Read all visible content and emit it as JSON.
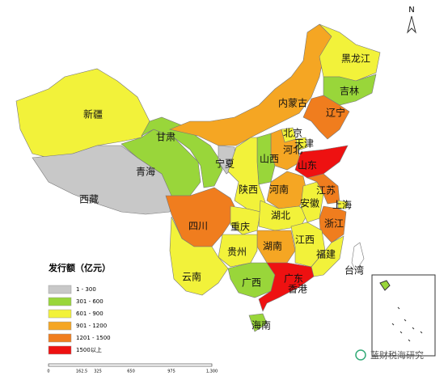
{
  "title": "发行额（亿元）",
  "legend": {
    "items": [
      {
        "label": "1 - 300",
        "color": "#c8c8c8"
      },
      {
        "label": "301 - 600",
        "color": "#99d63a"
      },
      {
        "label": "601 - 900",
        "color": "#f2f23a"
      },
      {
        "label": "901 - 1200",
        "color": "#f5a623"
      },
      {
        "label": "1201 - 1500",
        "color": "#f07d1e"
      },
      {
        "label": "1500以上",
        "color": "#ee1111"
      }
    ]
  },
  "regions": [
    {
      "name": "新疆",
      "legend": 2
    },
    {
      "name": "西藏",
      "legend": 0
    },
    {
      "name": "青海",
      "legend": 1
    },
    {
      "name": "甘肃",
      "legend": 1
    },
    {
      "name": "宁夏",
      "legend": 0
    },
    {
      "name": "内蒙古",
      "legend": 3
    },
    {
      "name": "黑龙江",
      "legend": 2
    },
    {
      "name": "吉林",
      "legend": 1
    },
    {
      "name": "辽宁",
      "legend": 4
    },
    {
      "name": "北京",
      "legend": 2
    },
    {
      "name": "天津",
      "legend": 2
    },
    {
      "name": "河北",
      "legend": 3
    },
    {
      "name": "山西",
      "legend": 1
    },
    {
      "name": "山东",
      "legend": 5
    },
    {
      "name": "河南",
      "legend": 3
    },
    {
      "name": "陕西",
      "legend": 2
    },
    {
      "name": "四川",
      "legend": 4
    },
    {
      "name": "重庆",
      "legend": 2
    },
    {
      "name": "湖北",
      "legend": 2
    },
    {
      "name": "安徽",
      "legend": 2
    },
    {
      "name": "江苏",
      "legend": 4
    },
    {
      "name": "上海",
      "legend": 2
    },
    {
      "name": "浙江",
      "legend": 4
    },
    {
      "name": "湖南",
      "legend": 3
    },
    {
      "name": "江西",
      "legend": 2
    },
    {
      "name": "福建",
      "legend": 2
    },
    {
      "name": "贵州",
      "legend": 2
    },
    {
      "name": "云南",
      "legend": 2
    },
    {
      "name": "广西",
      "legend": 1
    },
    {
      "name": "广东",
      "legend": 5
    },
    {
      "name": "海南",
      "legend": 1
    },
    {
      "name": "台湾",
      "legend": null
    },
    {
      "name": "香港",
      "legend": null
    }
  ],
  "north": "N",
  "scale": [
    "0",
    "162.5",
    "325",
    "650",
    "975",
    "1,300"
  ],
  "watermark": "蓝财税海研究"
}
